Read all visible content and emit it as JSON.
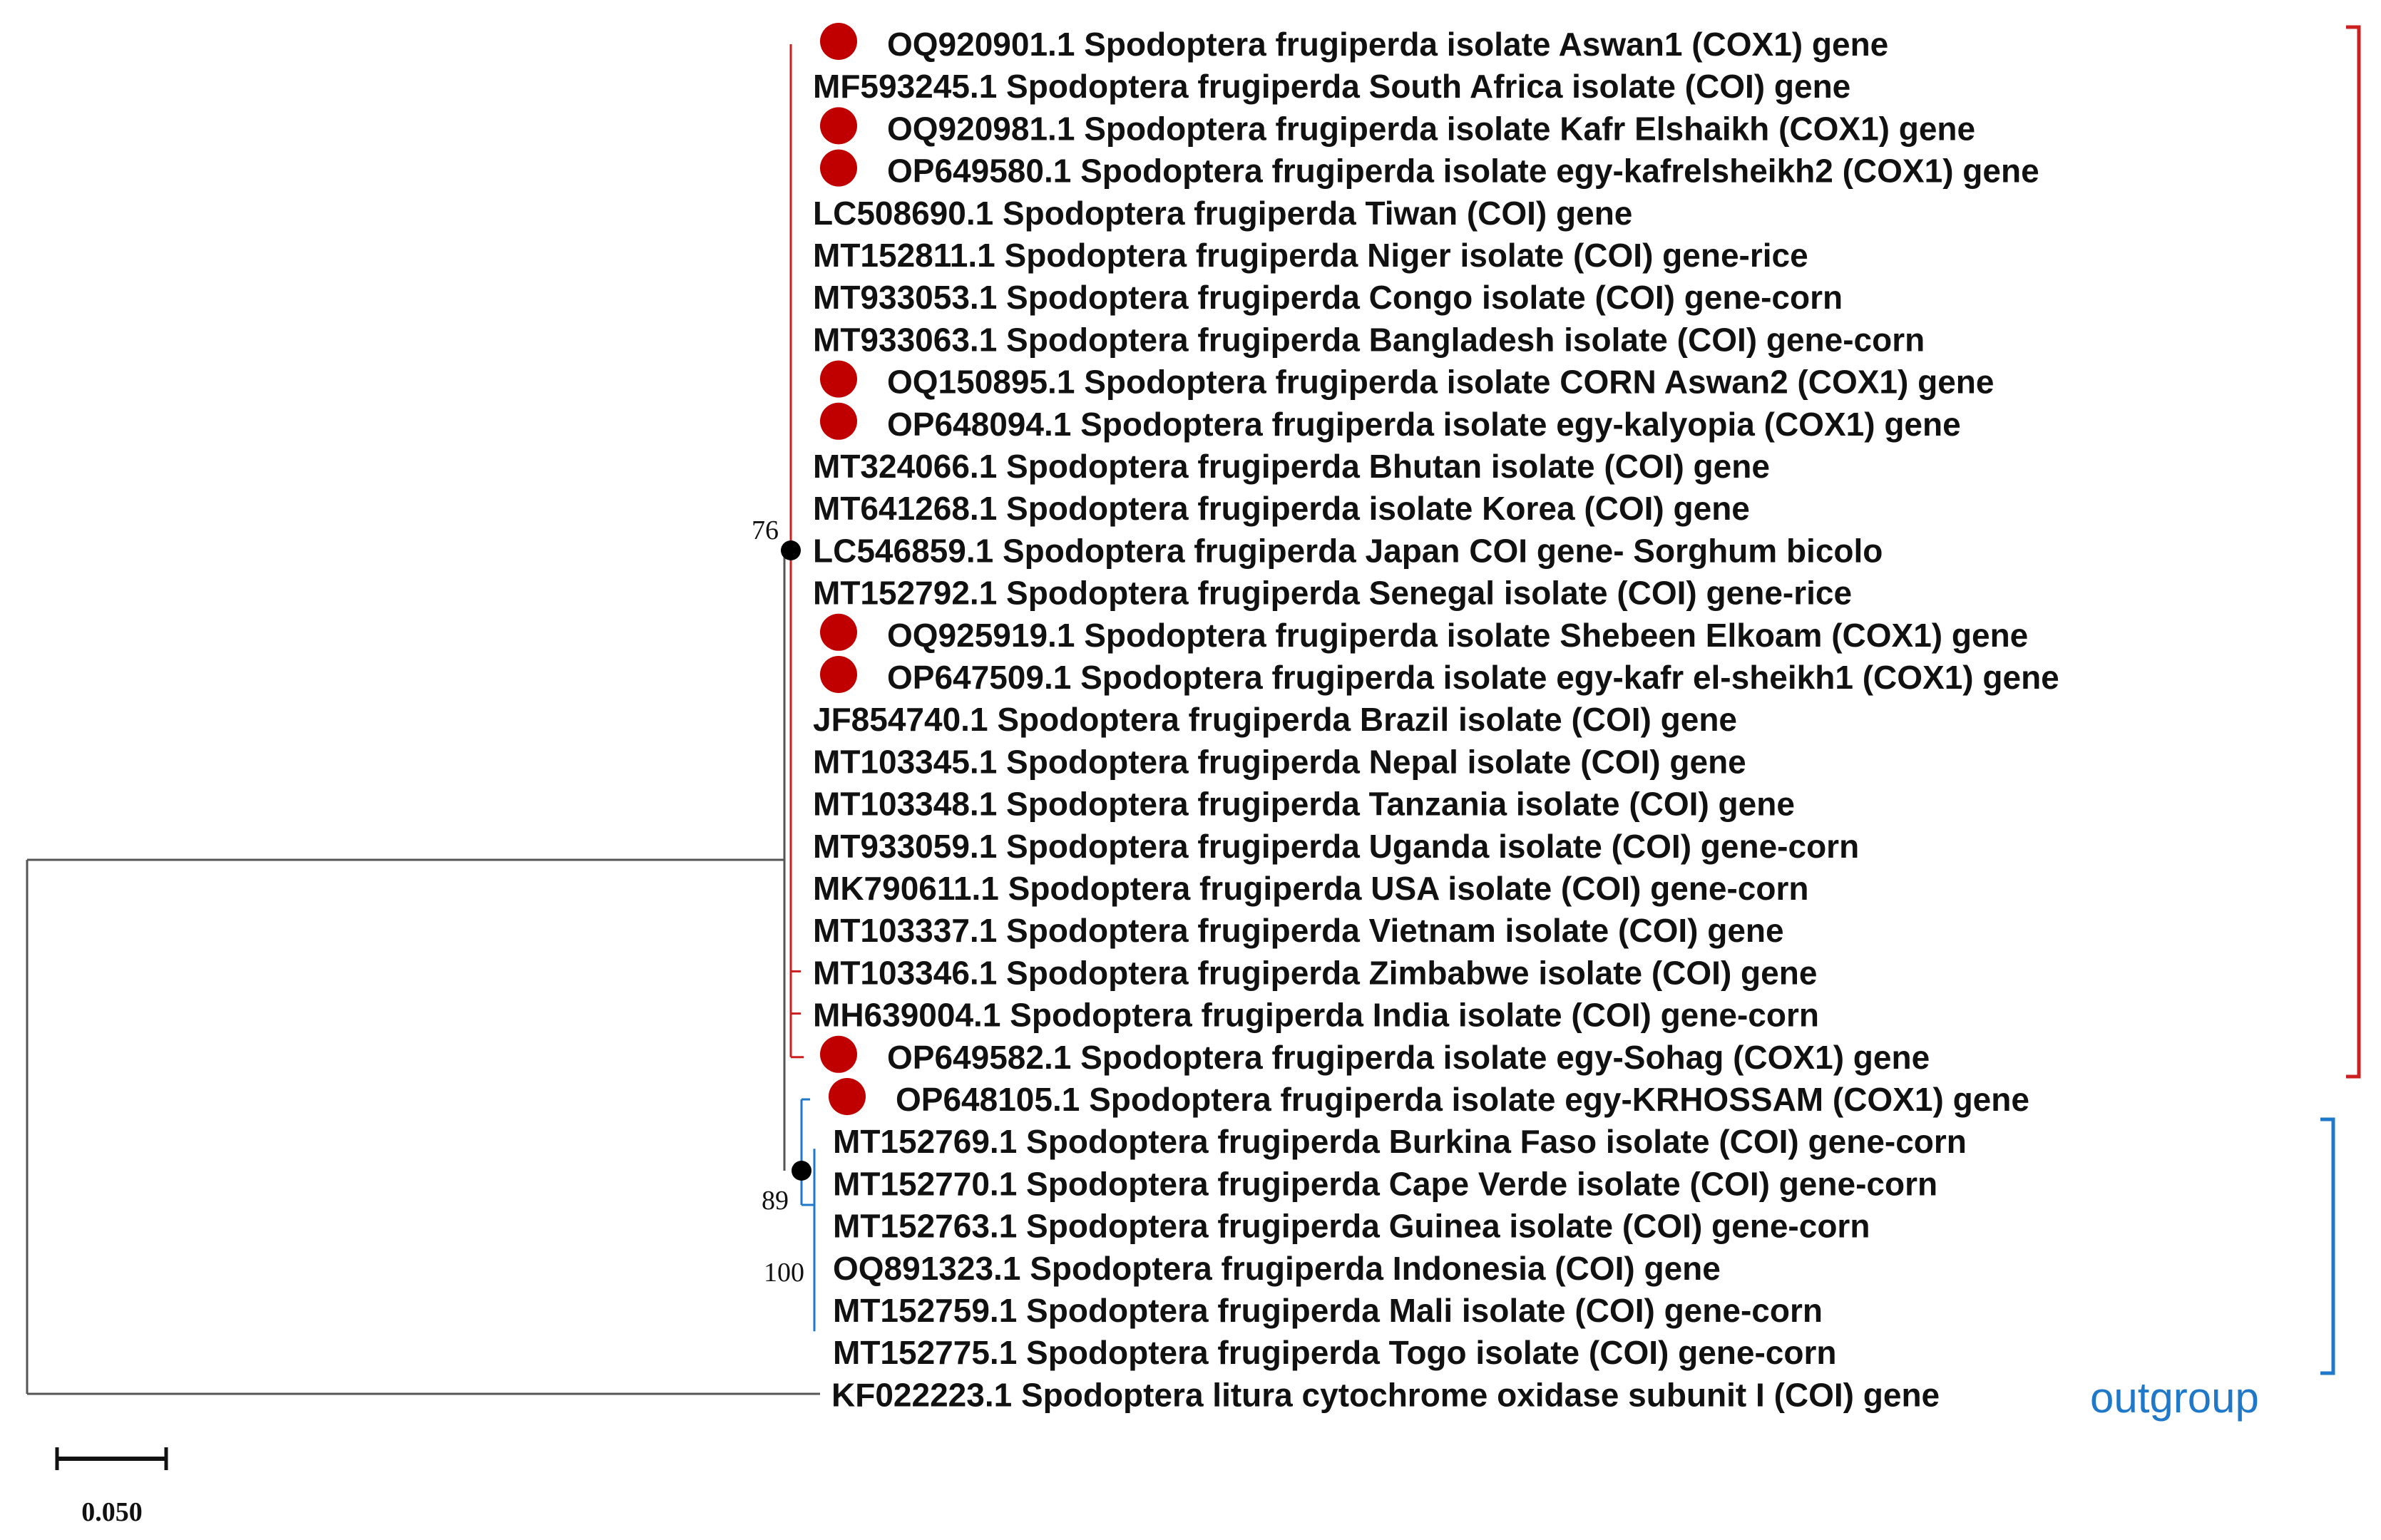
{
  "colors": {
    "branch": "#555555",
    "clade_red": "#cc1f1f",
    "clade_blue": "#1f78c8",
    "marker": "#c00000",
    "node": "#000000",
    "text": "#111111"
  },
  "leaves": [
    {
      "label": "OQ920901.1 Spodoptera frugiperda isolate Aswan1 (COX1) gene",
      "marker": true,
      "clade": "red"
    },
    {
      "label": "MF593245.1 Spodoptera frugiperda South Africa isolate (COI) gene",
      "marker": false,
      "clade": "red"
    },
    {
      "label": "OQ920981.1 Spodoptera frugiperda isolate Kafr Elshaikh (COX1) gene",
      "marker": true,
      "clade": "red"
    },
    {
      "label": "OP649580.1 Spodoptera frugiperda isolate egy-kafrelsheikh2 (COX1) gene",
      "marker": true,
      "clade": "red"
    },
    {
      "label": "LC508690.1 Spodoptera frugiperda Tiwan (COI) gene",
      "marker": false,
      "clade": "red"
    },
    {
      "label": "MT152811.1 Spodoptera frugiperda Niger isolate (COI) gene-rice",
      "marker": false,
      "clade": "red"
    },
    {
      "label": "MT933053.1 Spodoptera frugiperda Congo isolate (COI) gene-corn",
      "marker": false,
      "clade": "red"
    },
    {
      "label": "MT933063.1 Spodoptera frugiperda Bangladesh isolate (COI) gene-corn",
      "marker": false,
      "clade": "red"
    },
    {
      "label": "OQ150895.1 Spodoptera frugiperda isolate CORN Aswan2 (COX1) gene",
      "marker": true,
      "clade": "red"
    },
    {
      "label": "OP648094.1 Spodoptera frugiperda isolate egy-kalyopia (COX1) gene",
      "marker": true,
      "clade": "red"
    },
    {
      "label": "MT324066.1 Spodoptera frugiperda Bhutan isolate (COI) gene",
      "marker": false,
      "clade": "red"
    },
    {
      "label": "MT641268.1 Spodoptera frugiperda isolate Korea (COI) gene",
      "marker": false,
      "clade": "red"
    },
    {
      "label": "LC546859.1 Spodoptera frugiperda Japan COI gene- Sorghum bicolo",
      "marker": false,
      "clade": "red"
    },
    {
      "label": "MT152792.1 Spodoptera frugiperda Senegal isolate (COI) gene-rice",
      "marker": false,
      "clade": "red"
    },
    {
      "label": "OQ925919.1 Spodoptera frugiperda isolate Shebeen Elkoam (COX1) gene",
      "marker": true,
      "clade": "red"
    },
    {
      "label": "OP647509.1 Spodoptera frugiperda isolate egy-kafr el-sheikh1 (COX1) gene",
      "marker": true,
      "clade": "red"
    },
    {
      "label": "JF854740.1 Spodoptera frugiperda Brazil isolate (COI) gene",
      "marker": false,
      "clade": "red"
    },
    {
      "label": "MT103345.1 Spodoptera frugiperda Nepal isolate (COI) gene",
      "marker": false,
      "clade": "red"
    },
    {
      "label": "MT103348.1 Spodoptera frugiperda Tanzania isolate (COI) gene",
      "marker": false,
      "clade": "red"
    },
    {
      "label": "MT933059.1 Spodoptera frugiperda Uganda isolate (COI) gene-corn",
      "marker": false,
      "clade": "red"
    },
    {
      "label": "MK790611.1 Spodoptera frugiperda USA isolate (COI) gene-corn",
      "marker": false,
      "clade": "red"
    },
    {
      "label": "MT103337.1 Spodoptera frugiperda Vietnam isolate (COI) gene",
      "marker": false,
      "clade": "red"
    },
    {
      "label": "MT103346.1 Spodoptera frugiperda Zimbabwe isolate (COI) gene",
      "marker": false,
      "clade": "red"
    },
    {
      "label": "MH639004.1 Spodoptera frugiperda India isolate (COI) gene-corn",
      "marker": false,
      "clade": "red"
    },
    {
      "label": "OP649582.1 Spodoptera frugiperda isolate egy-Sohag (COX1) gene",
      "marker": true,
      "clade": "red"
    },
    {
      "label": "OP648105.1 Spodoptera frugiperda isolate egy-KRHOSSAM (COX1) gene",
      "marker": true,
      "clade": "blue"
    },
    {
      "label": "MT152769.1 Spodoptera frugiperda Burkina Faso isolate (COI) gene-corn",
      "marker": false,
      "clade": "blue"
    },
    {
      "label": "MT152770.1 Spodoptera frugiperda Cape Verde isolate (COI) gene-corn",
      "marker": false,
      "clade": "blue"
    },
    {
      "label": "MT152763.1 Spodoptera frugiperda Guinea isolate (COI) gene-corn",
      "marker": false,
      "clade": "blue"
    },
    {
      "label": "OQ891323.1 Spodoptera frugiperda Indonesia (COI) gene",
      "marker": false,
      "clade": "blue"
    },
    {
      "label": "MT152759.1 Spodoptera frugiperda Mali isolate (COI) gene-corn",
      "marker": false,
      "clade": "blue"
    },
    {
      "label": "MT152775.1 Spodoptera frugiperda Togo isolate (COI) gene-corn",
      "marker": false,
      "clade": "blue"
    },
    {
      "label": "KF022223.1 Spodoptera litura cytochrome oxidase subunit I (COI) gene",
      "marker": false,
      "clade": "outgroup"
    }
  ],
  "bootstrap": {
    "red_clade": "76",
    "blue_clade": "89",
    "blue_subclade": "100"
  },
  "outgroup_label": "outgroup",
  "scale_bar": {
    "value": 0.05,
    "label": "0.050"
  }
}
